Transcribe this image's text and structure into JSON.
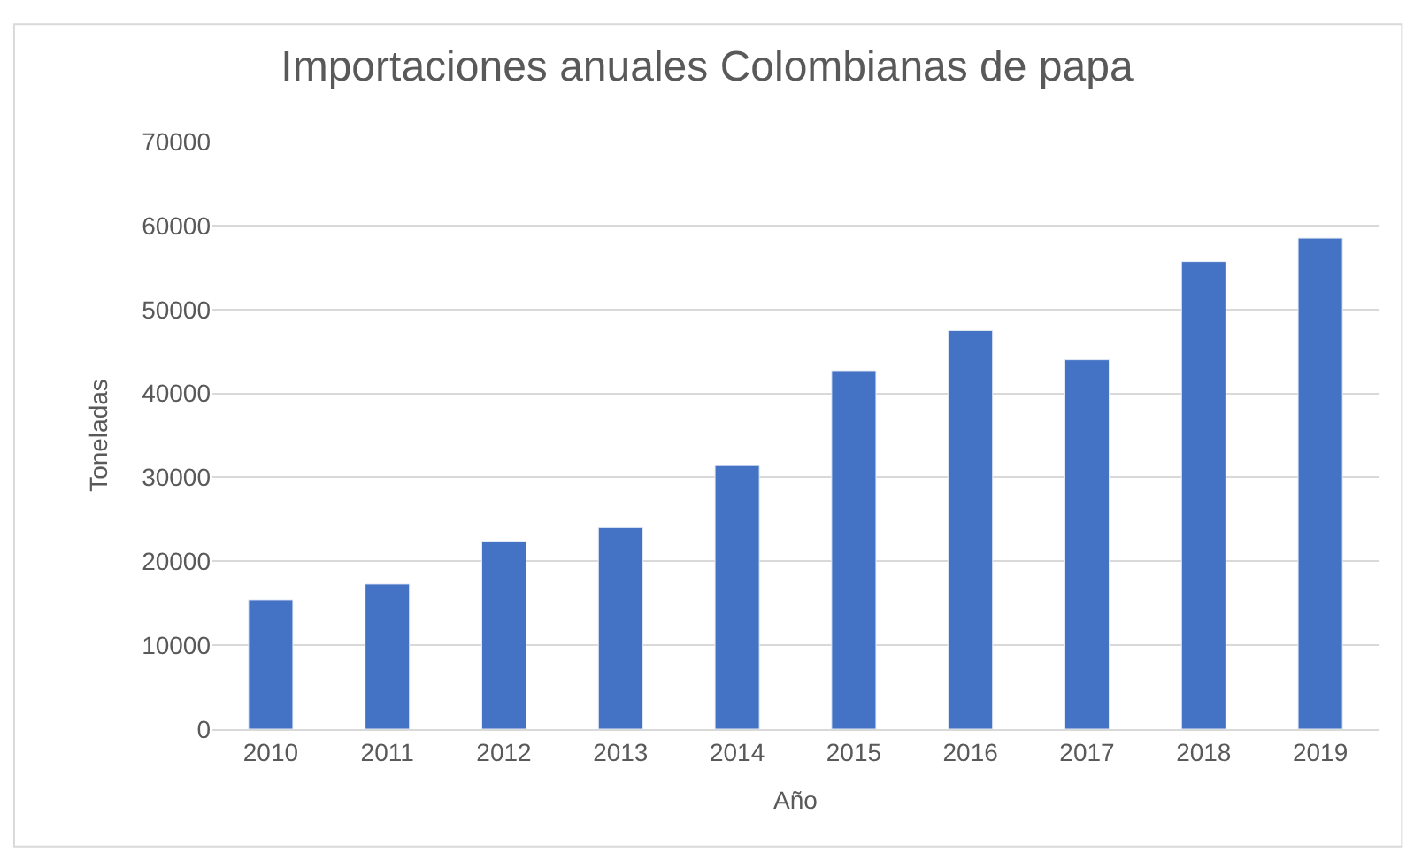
{
  "chart_data": {
    "type": "bar",
    "title": "Importaciones anuales Colombianas de papa",
    "xlabel": "Año",
    "ylabel": "Toneladas",
    "categories": [
      "2010",
      "2011",
      "2012",
      "2013",
      "2014",
      "2015",
      "2016",
      "2017",
      "2018",
      "2019"
    ],
    "values": [
      15400,
      17300,
      22400,
      24000,
      31400,
      42700,
      47500,
      44000,
      55700,
      58500
    ],
    "color": "#4472c4",
    "ylim": [
      0,
      70000
    ],
    "yticks": [
      0,
      10000,
      20000,
      30000,
      40000,
      50000,
      60000,
      70000
    ],
    "grid": "y",
    "legend": false
  }
}
